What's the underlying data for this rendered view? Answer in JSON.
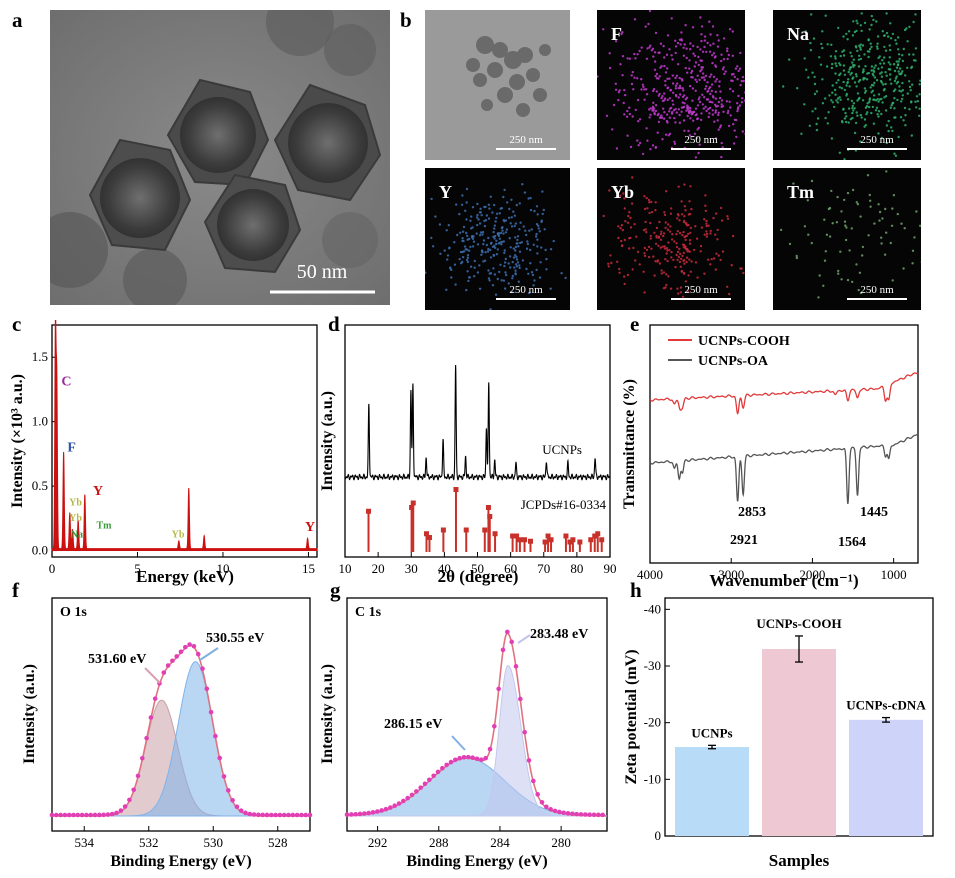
{
  "panel_letters": [
    "a",
    "b",
    "c",
    "d",
    "e",
    "f",
    "g",
    "h"
  ],
  "tem": {
    "scale_label": "50 nm"
  },
  "mapping": {
    "tiles": [
      {
        "label": "",
        "scale": "250 nm",
        "color": "#9a9a9a"
      },
      {
        "label": "F",
        "scale": "250 nm",
        "color": "#c23ad0"
      },
      {
        "label": "Na",
        "scale": "250 nm",
        "color": "#2fb36e"
      },
      {
        "label": "Y",
        "scale": "250 nm",
        "color": "#3d6fb0"
      },
      {
        "label": "Yb",
        "scale": "250 nm",
        "color": "#c42a3c"
      },
      {
        "label": "Tm",
        "scale": "250 nm",
        "color": "#6fa26c"
      }
    ]
  },
  "chart_data": [
    {
      "id": "c",
      "type": "line",
      "xlabel": "Energy (keV)",
      "ylabel": "Intensity (×10³ a.u.)",
      "xlim": [
        0,
        15.5
      ],
      "ylim": [
        -0.05,
        1.75
      ],
      "xticks": [
        0,
        5,
        10,
        15
      ],
      "yticks": [
        0.0,
        0.5,
        1.0,
        1.5
      ],
      "color": "#cc1111",
      "peaks": [
        [
          0.2,
          1.72
        ],
        [
          0.28,
          1.28
        ],
        [
          0.68,
          0.75
        ],
        [
          1.04,
          0.28
        ],
        [
          1.2,
          0.15
        ],
        [
          1.53,
          0.22
        ],
        [
          1.92,
          0.42
        ],
        [
          7.42,
          0.06
        ],
        [
          8.0,
          0.47
        ],
        [
          8.9,
          0.1
        ],
        [
          14.95,
          0.08
        ]
      ],
      "annotations": [
        {
          "text": "C",
          "x": 0.55,
          "y": 1.28,
          "color": "#9b2d9b"
        },
        {
          "text": "F",
          "x": 0.9,
          "y": 0.77,
          "color": "#3355aa"
        },
        {
          "text": "Yb",
          "x": 1.0,
          "y": 0.35,
          "color": "#b8b848"
        },
        {
          "text": "Yb",
          "x": 1.0,
          "y": 0.23,
          "color": "#b8b848"
        },
        {
          "text": "Na",
          "x": 1.1,
          "y": 0.1,
          "color": "#3a9a3a"
        },
        {
          "text": "Y",
          "x": 2.4,
          "y": 0.43,
          "color": "#cc1111"
        },
        {
          "text": "Tm",
          "x": 2.6,
          "y": 0.17,
          "color": "#3a9a3a"
        },
        {
          "text": "Yb",
          "x": 7.0,
          "y": 0.1,
          "color": "#b8b848"
        },
        {
          "text": "Y",
          "x": 14.8,
          "y": 0.15,
          "color": "#cc1111"
        }
      ]
    },
    {
      "id": "d",
      "type": "line",
      "xlabel": "2θ (degree)",
      "ylabel": "Intensity (a.u.)",
      "xlim": [
        10,
        90
      ],
      "xticks": [
        10,
        20,
        30,
        40,
        50,
        60,
        70,
        80,
        90
      ],
      "series": [
        {
          "name": "UCNPs",
          "color": "#000000",
          "peaks": [
            [
              17.2,
              0.52
            ],
            [
              29.9,
              0.62
            ],
            [
              30.5,
              0.66
            ],
            [
              34.5,
              0.14
            ],
            [
              39.6,
              0.27
            ],
            [
              43.4,
              0.8
            ],
            [
              46.4,
              0.15
            ],
            [
              52.7,
              0.36
            ],
            [
              53.4,
              0.68
            ],
            [
              55.2,
              0.12
            ],
            [
              61.6,
              0.1
            ],
            [
              70.8,
              0.12
            ],
            [
              77.3,
              0.1
            ],
            [
              85.5,
              0.14
            ]
          ]
        },
        {
          "name": "JCPDs#16-0334",
          "color": "#c8302a",
          "sticks": [
            [
              17.1,
              0.55
            ],
            [
              30.1,
              0.6
            ],
            [
              30.6,
              0.66
            ],
            [
              34.6,
              0.25
            ],
            [
              35.5,
              0.2
            ],
            [
              39.7,
              0.3
            ],
            [
              43.5,
              0.84
            ],
            [
              46.6,
              0.3
            ],
            [
              52.2,
              0.3
            ],
            [
              53.3,
              0.6
            ],
            [
              53.7,
              0.48
            ],
            [
              55.3,
              0.25
            ],
            [
              60.6,
              0.22
            ],
            [
              61.8,
              0.22
            ],
            [
              62.8,
              0.17
            ],
            [
              64.2,
              0.17
            ],
            [
              66.0,
              0.15
            ],
            [
              70.4,
              0.14
            ],
            [
              71.3,
              0.22
            ],
            [
              72.2,
              0.17
            ],
            [
              76.7,
              0.22
            ],
            [
              77.9,
              0.14
            ],
            [
              78.8,
              0.17
            ],
            [
              80.9,
              0.14
            ],
            [
              84.2,
              0.17
            ],
            [
              85.4,
              0.22
            ],
            [
              86.3,
              0.25
            ],
            [
              87.5,
              0.17
            ]
          ]
        }
      ]
    },
    {
      "id": "e",
      "type": "line",
      "xlabel": "Wavenumber (cm⁻¹)",
      "ylabel": "Transmittance (%)",
      "xlim": [
        4000,
        700
      ],
      "xticks": [
        4000,
        3000,
        2000,
        1000
      ],
      "legend": "top-left",
      "series": [
        {
          "name": "UCNPs-COOH",
          "color": "#e03a3a"
        },
        {
          "name": "UCNPs-OA",
          "color": "#555555"
        }
      ],
      "annotations": [
        "2921",
        "2853",
        "1564",
        "1445"
      ]
    },
    {
      "id": "f",
      "type": "area",
      "title": "O 1s",
      "xlabel": "Binding Energy (eV)",
      "ylabel": "Intensity (a.u.)",
      "xlim": [
        535,
        527
      ],
      "xticks": [
        534,
        532,
        530,
        528
      ],
      "components": [
        {
          "label": "531.60 eV",
          "center": 531.6,
          "height": 0.6,
          "width": 0.7,
          "color": "#c9a0a8"
        },
        {
          "label": "530.55 eV",
          "center": 530.55,
          "height": 0.8,
          "width": 0.75,
          "color": "#7fb4ea"
        }
      ]
    },
    {
      "id": "g",
      "type": "area",
      "title": "C 1s",
      "xlabel": "Binding Energy (eV)",
      "ylabel": "Intensity (a.u.)",
      "xlim": [
        294,
        277
      ],
      "xticks": [
        292,
        288,
        284,
        280
      ],
      "components": [
        {
          "label": "286.15 eV",
          "center": 286.15,
          "height": 0.3,
          "width": 3.5,
          "color": "#7fb4ea"
        },
        {
          "label": "283.48 eV",
          "center": 283.48,
          "height": 0.78,
          "width": 0.8,
          "color": "#c3c8ee"
        }
      ]
    },
    {
      "id": "h",
      "type": "bar",
      "xlabel": "Samples",
      "ylabel": "Zeta potential (mV)",
      "ylim": [
        0,
        -42
      ],
      "yticks": [
        0,
        -10,
        -20,
        -30,
        -40
      ],
      "categories": [
        "UCNPs",
        "UCNPs-COOH",
        "UCNPs-cDNA"
      ],
      "values": [
        -15.7,
        -33.0,
        -20.5
      ],
      "errors": [
        0.3,
        2.3,
        0.4
      ],
      "colors": [
        "#b8dcf7",
        "#eec9d3",
        "#cdd3f9"
      ]
    }
  ]
}
